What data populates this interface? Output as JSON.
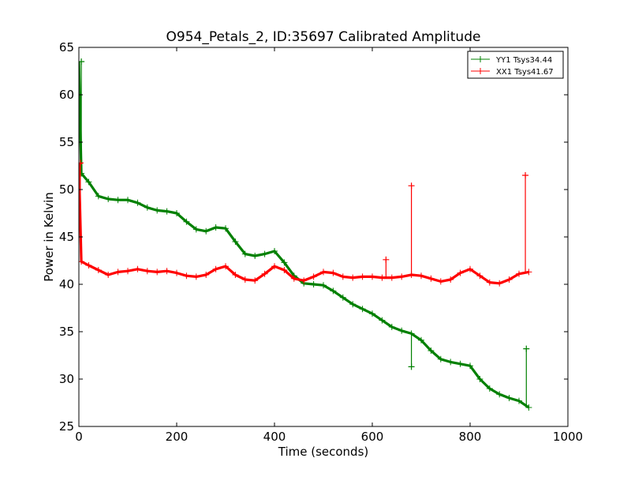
{
  "chart_data": {
    "type": "line",
    "title": "O954_Petals_2, ID:35697 Calibrated Amplitude",
    "xlabel": "Time (seconds)",
    "ylabel": "Power in Kelvin",
    "xlim": [
      0,
      1000
    ],
    "ylim": [
      25,
      65
    ],
    "xticks": [
      0,
      200,
      400,
      600,
      800,
      1000
    ],
    "yticks": [
      25,
      30,
      35,
      40,
      45,
      50,
      55,
      60,
      65
    ],
    "xtick_labels": [
      "0",
      "200",
      "400",
      "600",
      "800",
      "1000"
    ],
    "ytick_labels": [
      "25",
      "30",
      "35",
      "40",
      "45",
      "50",
      "55",
      "60",
      "65"
    ],
    "grid": false,
    "legend_position": "top-right",
    "series": [
      {
        "name": "YY1 Tsys34.44",
        "color": "#008000",
        "x": [
          0,
          5,
          20,
          40,
          60,
          80,
          100,
          120,
          140,
          160,
          180,
          200,
          220,
          240,
          260,
          280,
          300,
          320,
          340,
          360,
          380,
          400,
          420,
          440,
          460,
          480,
          500,
          520,
          540,
          560,
          580,
          600,
          620,
          640,
          660,
          680,
          700,
          720,
          740,
          760,
          780,
          800,
          820,
          840,
          860,
          880,
          900,
          920
        ],
        "y": [
          63.5,
          51.7,
          50.8,
          49.3,
          49.0,
          48.9,
          48.9,
          48.6,
          48.1,
          47.8,
          47.7,
          47.5,
          46.6,
          45.8,
          45.6,
          46.0,
          45.9,
          44.5,
          43.2,
          43.0,
          43.2,
          43.5,
          42.3,
          40.9,
          40.1,
          40.0,
          39.9,
          39.3,
          38.6,
          37.9,
          37.4,
          36.9,
          36.2,
          35.5,
          35.1,
          34.8,
          34.1,
          33.0,
          32.1,
          31.8,
          31.6,
          31.4,
          30.0,
          29.0,
          28.4,
          28.0,
          27.7,
          27.0
        ],
        "spikes": [
          {
            "x": 5,
            "y": 63.5
          },
          {
            "x": 680,
            "y": 31.3
          },
          {
            "x": 915,
            "y": 33.2
          }
        ]
      },
      {
        "name": "XX1 Tsys41.67",
        "color": "#ff0000",
        "x": [
          0,
          5,
          20,
          40,
          60,
          80,
          100,
          120,
          140,
          160,
          180,
          200,
          220,
          240,
          260,
          280,
          300,
          320,
          340,
          360,
          380,
          400,
          420,
          440,
          460,
          480,
          500,
          520,
          540,
          560,
          580,
          600,
          620,
          640,
          660,
          680,
          700,
          720,
          740,
          760,
          780,
          800,
          820,
          840,
          860,
          880,
          900,
          920
        ],
        "y": [
          52.7,
          42.4,
          42.0,
          41.5,
          41.0,
          41.3,
          41.4,
          41.6,
          41.4,
          41.3,
          41.4,
          41.2,
          40.9,
          40.8,
          41.0,
          41.6,
          41.9,
          41.0,
          40.5,
          40.4,
          41.1,
          41.9,
          41.5,
          40.6,
          40.4,
          40.8,
          41.3,
          41.2,
          40.8,
          40.7,
          40.8,
          40.8,
          40.7,
          40.7,
          40.8,
          41.0,
          40.9,
          40.6,
          40.3,
          40.5,
          41.2,
          41.6,
          40.9,
          40.2,
          40.1,
          40.5,
          41.1,
          41.3
        ],
        "spikes": [
          {
            "x": 3,
            "y": 52.8
          },
          {
            "x": 628,
            "y": 42.6
          },
          {
            "x": 680,
            "y": 50.4
          },
          {
            "x": 913,
            "y": 51.5
          }
        ]
      }
    ]
  }
}
